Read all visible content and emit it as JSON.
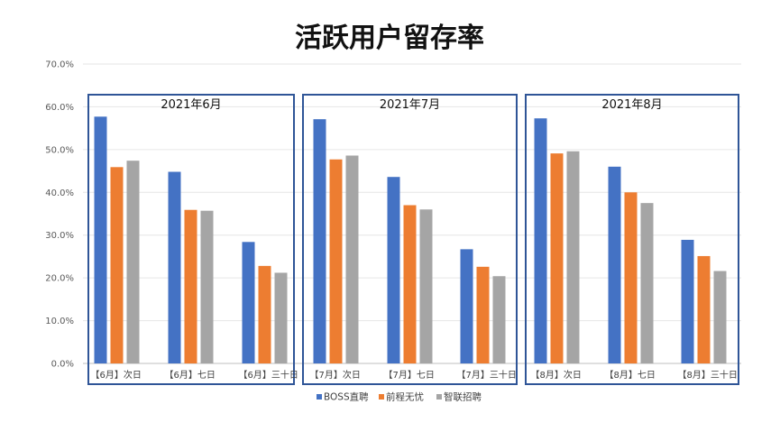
{
  "chart_data": {
    "type": "bar",
    "title": "活跃用户留存率",
    "ylim": [
      0,
      70
    ],
    "y_ticks": [
      "0.0%",
      "10.0%",
      "20.0%",
      "30.0%",
      "40.0%",
      "50.0%",
      "60.0%",
      "70.0%"
    ],
    "grid": true,
    "legend_position": "bottom",
    "groups": [
      "2021年6月",
      "2021年7月",
      "2021年8月"
    ],
    "categories": [
      "【6月】次日",
      "【6月】七日",
      "【6月】三十日",
      "【7月】次日",
      "【7月】七日",
      "【7月】三十日",
      "【8月】次日",
      "【8月】七日",
      "【8月】三十日"
    ],
    "series": [
      {
        "name": "BOSS直聘",
        "color": "#4472C4",
        "values": [
          57.7,
          44.8,
          28.4,
          57.1,
          43.6,
          26.7,
          57.3,
          46.0,
          28.9
        ]
      },
      {
        "name": "前程无忧",
        "color": "#ED7D31",
        "values": [
          45.9,
          35.9,
          22.8,
          47.7,
          37.0,
          22.6,
          49.1,
          40.0,
          25.1
        ]
      },
      {
        "name": "智联招聘",
        "color": "#A5A5A5",
        "values": [
          47.4,
          35.7,
          21.2,
          48.6,
          36.0,
          20.4,
          49.6,
          37.5,
          21.6
        ]
      }
    ],
    "group_box_color": "#2F5597"
  }
}
